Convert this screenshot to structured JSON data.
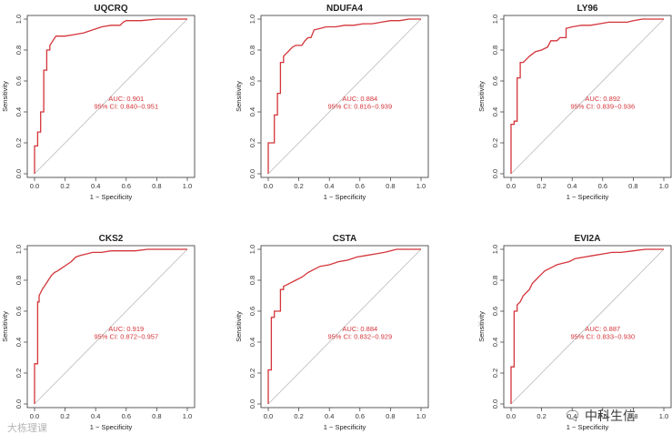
{
  "chart_data": [
    {
      "type": "line",
      "title": "UQCRQ",
      "xlabel": "1 − Specificity",
      "ylabel": "Sensitivity",
      "xlim": [
        0,
        1
      ],
      "ylim": [
        0,
        1
      ],
      "xticks": [
        "0.0",
        "0.2",
        "0.4",
        "0.6",
        "0.8",
        "1.0"
      ],
      "yticks": [
        "0.0",
        "0.2",
        "0.4",
        "0.6",
        "0.8",
        "1.0"
      ],
      "auc_text": "AUC: 0.901",
      "ci_text": "95% CI: 0.840−0.951",
      "x": [
        0,
        0,
        0.02,
        0.02,
        0.04,
        0.04,
        0.06,
        0.06,
        0.08,
        0.08,
        0.1,
        0.1,
        0.14,
        0.2,
        0.26,
        0.32,
        0.38,
        0.44,
        0.5,
        0.56,
        0.58,
        0.6,
        0.7,
        0.8,
        0.9,
        1.0
      ],
      "y": [
        0,
        0.18,
        0.18,
        0.27,
        0.27,
        0.4,
        0.4,
        0.67,
        0.67,
        0.8,
        0.8,
        0.83,
        0.89,
        0.89,
        0.9,
        0.91,
        0.93,
        0.95,
        0.96,
        0.96,
        0.98,
        0.99,
        0.99,
        1.0,
        1.0,
        1.0
      ]
    },
    {
      "type": "line",
      "title": "NDUFA4",
      "xlabel": "1 − Specificity",
      "ylabel": "Sensitivity",
      "xlim": [
        0,
        1
      ],
      "ylim": [
        0,
        1
      ],
      "xticks": [
        "0.0",
        "0.2",
        "0.4",
        "0.6",
        "0.8",
        "1.0"
      ],
      "yticks": [
        "0.0",
        "0.2",
        "0.4",
        "0.6",
        "0.8",
        "1.0"
      ],
      "auc_text": "AUC: 0.884",
      "ci_text": "95% CI: 0.816−0.939",
      "x": [
        0,
        0,
        0.04,
        0.04,
        0.06,
        0.06,
        0.08,
        0.08,
        0.1,
        0.1,
        0.12,
        0.14,
        0.16,
        0.18,
        0.22,
        0.24,
        0.26,
        0.28,
        0.3,
        0.34,
        0.38,
        0.44,
        0.5,
        0.56,
        0.62,
        0.68,
        0.74,
        0.8,
        0.86,
        0.92,
        0.98,
        1.0
      ],
      "y": [
        0,
        0.2,
        0.2,
        0.38,
        0.38,
        0.52,
        0.52,
        0.72,
        0.72,
        0.76,
        0.78,
        0.8,
        0.82,
        0.83,
        0.83,
        0.86,
        0.88,
        0.88,
        0.93,
        0.94,
        0.95,
        0.95,
        0.96,
        0.96,
        0.97,
        0.97,
        0.98,
        0.99,
        0.99,
        1.0,
        1.0,
        1.0
      ]
    },
    {
      "type": "line",
      "title": "LY96",
      "xlabel": "1 − Specificity",
      "ylabel": "Sensitivity",
      "xlim": [
        0,
        1
      ],
      "ylim": [
        0,
        1
      ],
      "xticks": [
        "0.0",
        "0.2",
        "0.4",
        "0.6",
        "0.8",
        "1.0"
      ],
      "yticks": [
        "0.0",
        "0.2",
        "0.4",
        "0.6",
        "0.8",
        "1.0"
      ],
      "auc_text": "AUC: 0.892",
      "ci_text": "95% CI: 0.839−0.936",
      "x": [
        0,
        0,
        0.02,
        0.02,
        0.04,
        0.04,
        0.06,
        0.06,
        0.08,
        0.1,
        0.12,
        0.16,
        0.2,
        0.24,
        0.26,
        0.3,
        0.32,
        0.36,
        0.36,
        0.4,
        0.46,
        0.52,
        0.58,
        0.64,
        0.7,
        0.76,
        0.8,
        0.86,
        0.92,
        1.0
      ],
      "y": [
        0,
        0.32,
        0.32,
        0.34,
        0.34,
        0.62,
        0.62,
        0.72,
        0.72,
        0.74,
        0.76,
        0.79,
        0.8,
        0.82,
        0.86,
        0.86,
        0.88,
        0.88,
        0.94,
        0.95,
        0.96,
        0.96,
        0.97,
        0.98,
        0.98,
        0.98,
        0.99,
        1.0,
        1.0,
        1.0
      ]
    },
    {
      "type": "line",
      "title": "CKS2",
      "xlabel": "1 − Specificity",
      "ylabel": "Sensitivity",
      "xlim": [
        0,
        1
      ],
      "ylim": [
        0,
        1
      ],
      "xticks": [
        "0.0",
        "0.2",
        "0.4",
        "0.6",
        "0.8",
        "1.0"
      ],
      "yticks": [
        "0.0",
        "0.2",
        "0.4",
        "0.6",
        "0.8",
        "1.0"
      ],
      "auc_text": "AUC: 0.919",
      "ci_text": "95% CI: 0.872−0.957",
      "x": [
        0,
        0,
        0.02,
        0.02,
        0.03,
        0.03,
        0.05,
        0.07,
        0.09,
        0.11,
        0.13,
        0.15,
        0.18,
        0.21,
        0.24,
        0.27,
        0.3,
        0.34,
        0.38,
        0.44,
        0.5,
        0.58,
        0.66,
        0.74,
        0.82,
        0.9,
        1.0
      ],
      "y": [
        0,
        0.26,
        0.26,
        0.66,
        0.66,
        0.7,
        0.74,
        0.77,
        0.8,
        0.83,
        0.85,
        0.86,
        0.88,
        0.9,
        0.92,
        0.95,
        0.96,
        0.97,
        0.98,
        0.98,
        0.99,
        0.99,
        0.99,
        1.0,
        1.0,
        1.0,
        1.0
      ]
    },
    {
      "type": "line",
      "title": "CSTA",
      "xlabel": "1 − Specificity",
      "ylabel": "Sensitivity",
      "xlim": [
        0,
        1
      ],
      "ylim": [
        0,
        1
      ],
      "xticks": [
        "0.0",
        "0.2",
        "0.4",
        "0.6",
        "0.8",
        "1.0"
      ],
      "yticks": [
        "0.0",
        "0.2",
        "0.4",
        "0.6",
        "0.8",
        "1.0"
      ],
      "auc_text": "AUC: 0.884",
      "ci_text": "95% CI: 0.832−0.929",
      "x": [
        0,
        0,
        0.02,
        0.02,
        0.04,
        0.04,
        0.08,
        0.08,
        0.1,
        0.1,
        0.14,
        0.18,
        0.22,
        0.26,
        0.3,
        0.34,
        0.4,
        0.46,
        0.52,
        0.58,
        0.64,
        0.7,
        0.76,
        0.8,
        0.84,
        0.9,
        1.0
      ],
      "y": [
        0,
        0.22,
        0.22,
        0.56,
        0.56,
        0.6,
        0.6,
        0.74,
        0.74,
        0.76,
        0.78,
        0.8,
        0.82,
        0.85,
        0.87,
        0.89,
        0.9,
        0.92,
        0.93,
        0.95,
        0.96,
        0.97,
        0.98,
        0.99,
        1.0,
        1.0,
        1.0
      ]
    },
    {
      "type": "line",
      "title": "EVI2A",
      "xlabel": "1 − Specificity",
      "ylabel": "Sensitivity",
      "xlim": [
        0,
        1
      ],
      "ylim": [
        0,
        1
      ],
      "xticks": [
        "0.0",
        "0.2",
        "0.4",
        "0.6",
        "0.8",
        "1.0"
      ],
      "yticks": [
        "0.0",
        "0.2",
        "0.4",
        "0.6",
        "0.8",
        "1.0"
      ],
      "auc_text": "AUC: 0.887",
      "ci_text": "95% CI: 0.833−0.930",
      "x": [
        0,
        0,
        0.02,
        0.02,
        0.04,
        0.04,
        0.06,
        0.08,
        0.1,
        0.12,
        0.14,
        0.16,
        0.18,
        0.2,
        0.22,
        0.26,
        0.3,
        0.34,
        0.38,
        0.42,
        0.48,
        0.54,
        0.6,
        0.66,
        0.72,
        0.8,
        0.88,
        0.94,
        1.0
      ],
      "y": [
        0,
        0.24,
        0.24,
        0.6,
        0.6,
        0.64,
        0.66,
        0.7,
        0.72,
        0.74,
        0.78,
        0.8,
        0.82,
        0.84,
        0.86,
        0.88,
        0.9,
        0.91,
        0.92,
        0.94,
        0.95,
        0.96,
        0.97,
        0.98,
        0.98,
        0.99,
        1.0,
        1.0,
        1.0
      ]
    }
  ],
  "watermarks": {
    "left_text": "大栋理课",
    "right_text": "中科生信",
    "right_icon": "wechat-logo-icon"
  }
}
